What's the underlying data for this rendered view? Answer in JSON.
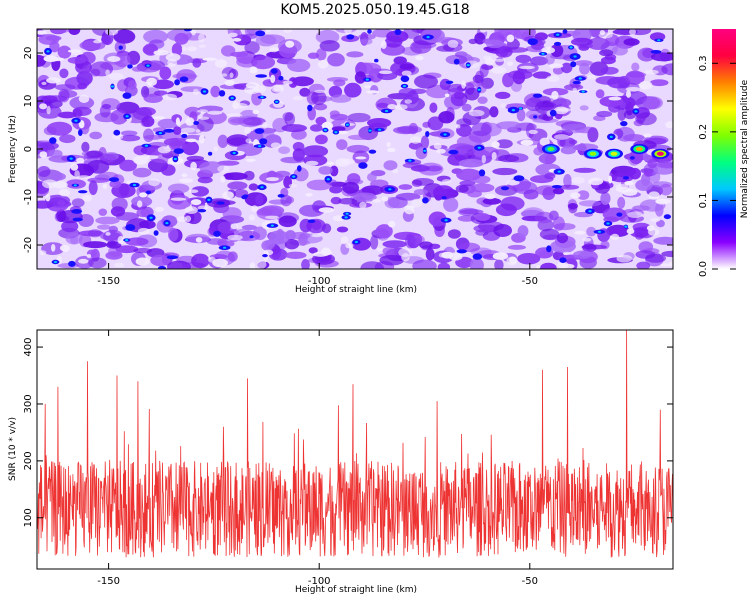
{
  "title": "KOM5.2025.050.19.45.G18",
  "chart_data": [
    {
      "type": "heatmap",
      "xlabel": "Height of straight line (km)",
      "ylabel": "Frequency (Hz)",
      "xlim": [
        -167,
        -16
      ],
      "ylim": [
        -25,
        25
      ],
      "xticks": [
        -150,
        -100,
        -50
      ],
      "yticks": [
        -20,
        -10,
        0,
        10,
        20
      ],
      "colorbar": {
        "label": "Normalized spectral amplitude",
        "range": [
          0.0,
          0.35
        ],
        "ticks": [
          0.0,
          0.1,
          0.2,
          0.3
        ],
        "colors": [
          "#ffffff",
          "#8a00ff",
          "#0000ff",
          "#00c8ff",
          "#00ff80",
          "#80ff00",
          "#ffff00",
          "#ff8000",
          "#ff0040",
          "#ff0080"
        ]
      },
      "features": [
        {
          "x": -45,
          "y": 0,
          "value": 0.18
        },
        {
          "x": -35,
          "y": -1,
          "value": 0.2
        },
        {
          "x": -30,
          "y": -1,
          "value": 0.22
        },
        {
          "x": -24,
          "y": 0,
          "value": 0.26
        },
        {
          "x": -19,
          "y": -1,
          "value": 0.34
        }
      ]
    },
    {
      "type": "line",
      "xlabel": "Height of straight line (km)",
      "ylabel": "SNR (10 * v/v)",
      "xlim": [
        -167,
        -16
      ],
      "ylim": [
        10,
        430
      ],
      "xticks": [
        -150,
        -100,
        -50
      ],
      "yticks": [
        100,
        200,
        300,
        400
      ],
      "color": "#ee3333",
      "peaks": [
        {
          "x": -162,
          "y": 330
        },
        {
          "x": -155,
          "y": 375
        },
        {
          "x": -148,
          "y": 350
        },
        {
          "x": -143,
          "y": 340
        },
        {
          "x": -117,
          "y": 345
        },
        {
          "x": -92,
          "y": 335
        },
        {
          "x": -72,
          "y": 305
        },
        {
          "x": -47,
          "y": 360
        },
        {
          "x": -41,
          "y": 365
        },
        {
          "x": -27,
          "y": 430
        },
        {
          "x": -19,
          "y": 290
        }
      ]
    }
  ]
}
